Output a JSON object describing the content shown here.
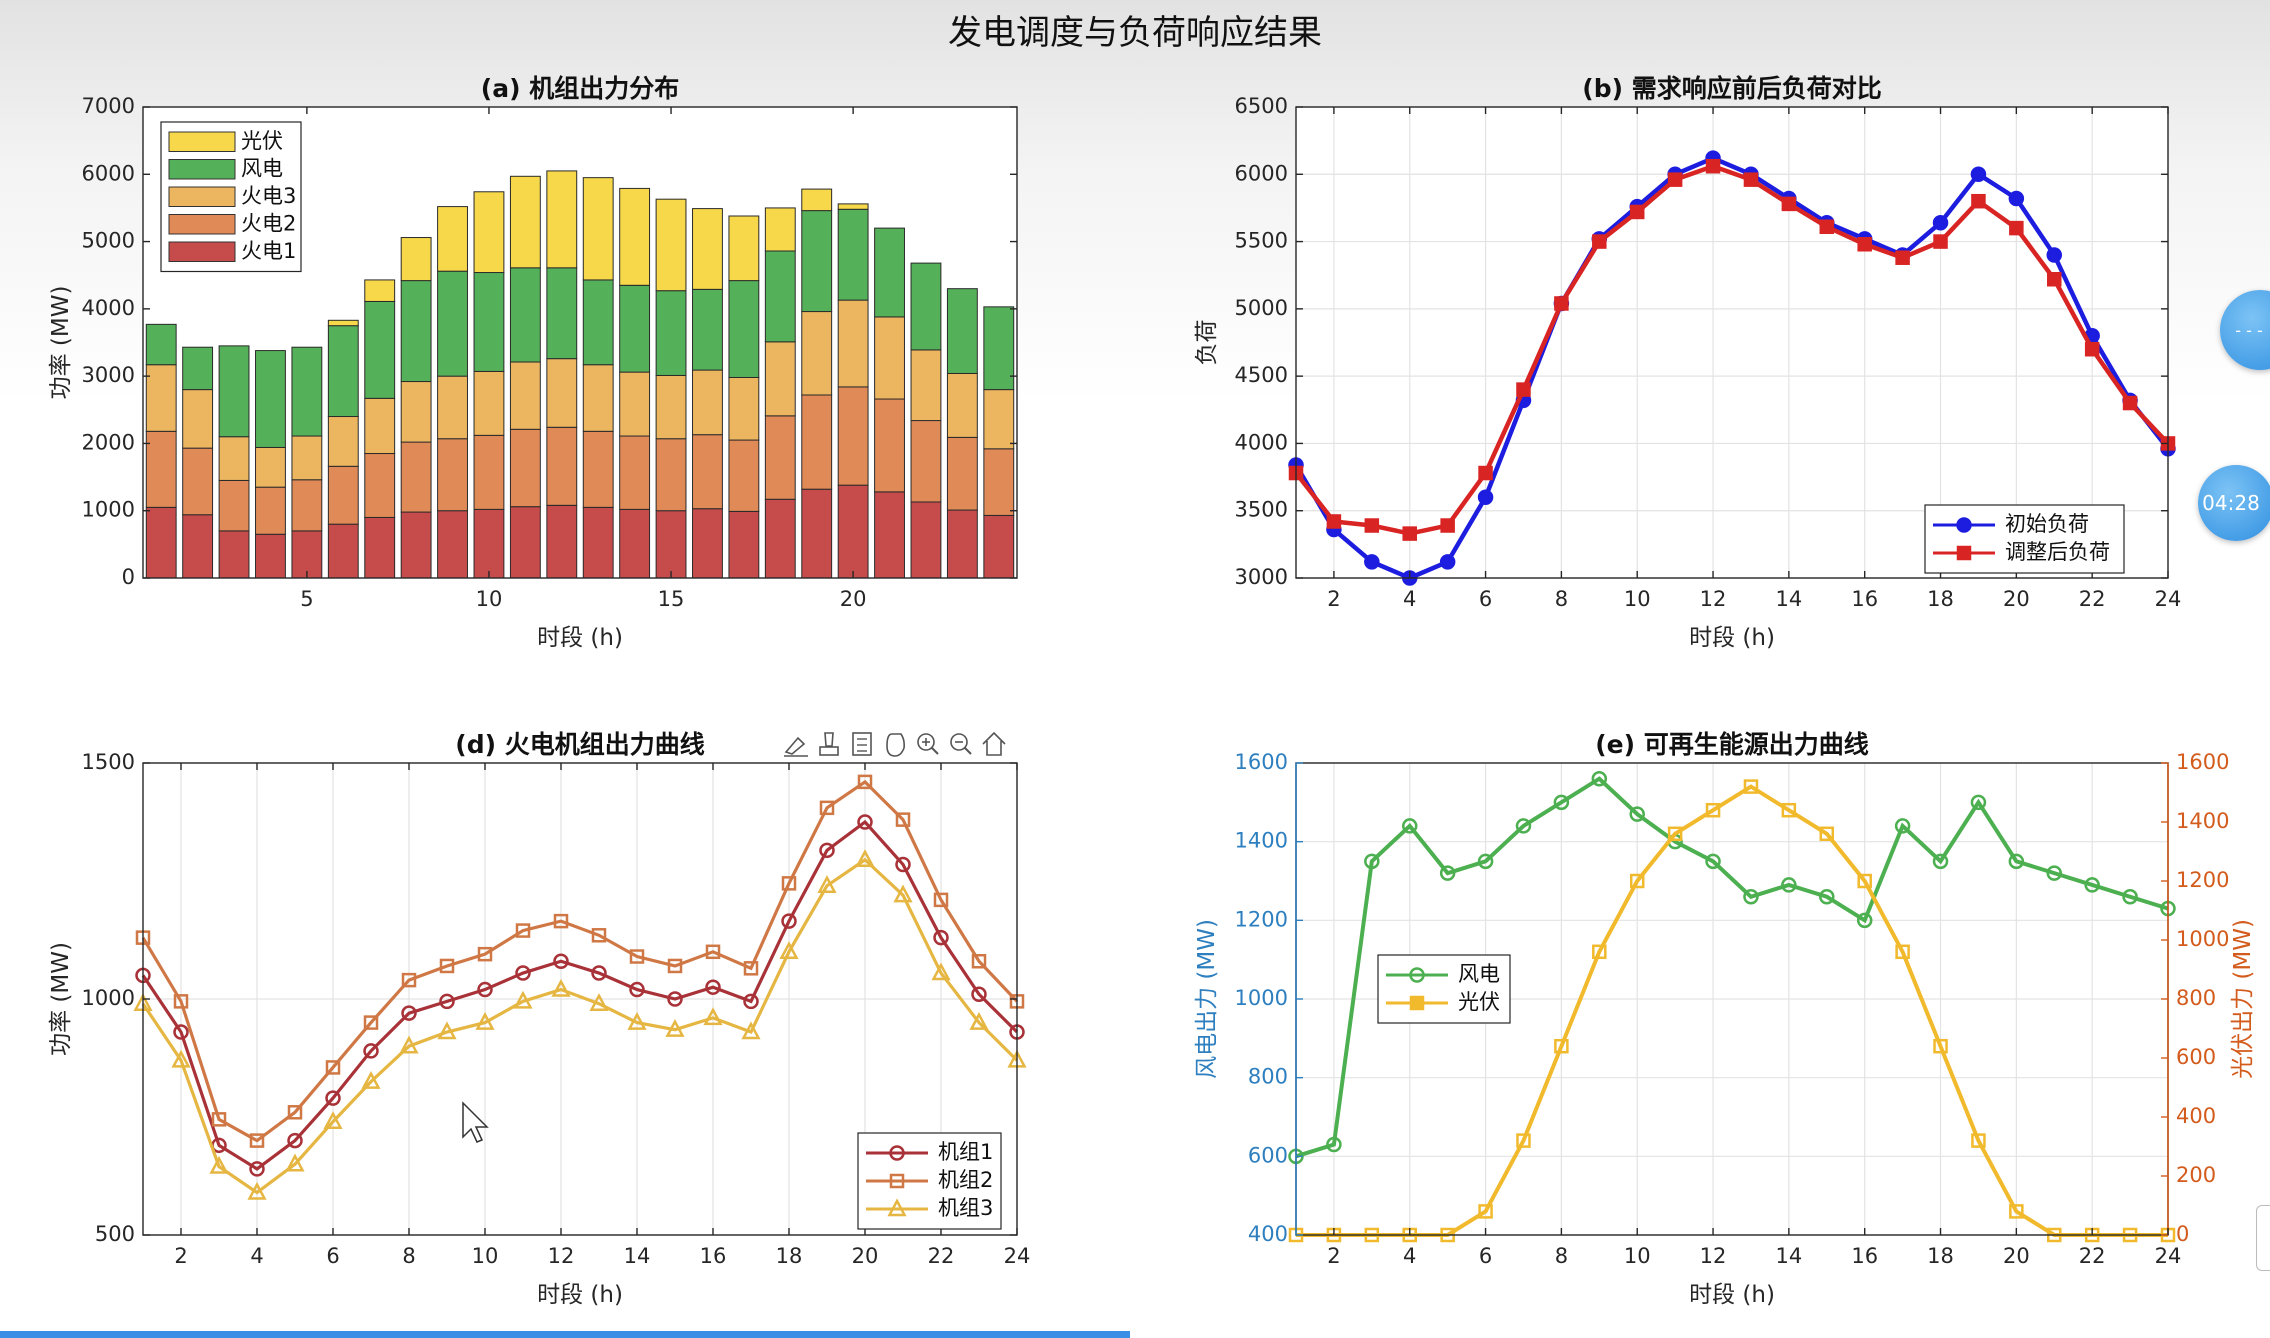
{
  "window": {
    "figure_title": "发电调度与负荷响应结果",
    "timer_badge": "04:28",
    "side_button": "- - -"
  },
  "axes_toolbar": {
    "icons": [
      "brush-icon",
      "data-tips-icon",
      "insert-legend-icon",
      "pan-hand-icon",
      "zoom-in-icon",
      "zoom-out-icon",
      "home-icon"
    ]
  },
  "colors": {
    "pv": "#f6d84a",
    "wind": "#55b05a",
    "thermal3": "#ecb661",
    "thermal2": "#e08a57",
    "thermal1": "#c64b4b",
    "initial_load": "#1d1de0",
    "adjusted_load": "#d92424",
    "unit1": "#a83238",
    "unit2": "#d07845",
    "unit3": "#e6b642",
    "wind_line": "#4caf50",
    "pv_line": "#f1b92c",
    "left_axis_blue": "#2d7fbf",
    "right_axis_orange": "#d35b1c"
  },
  "chart_data": [
    {
      "id": "a",
      "type": "bar",
      "title": "(a) 机组出力分布",
      "xlabel": "时段 (h)",
      "ylabel": "功率 (MW)",
      "ylim": [
        0,
        7000
      ],
      "yticks": [
        0,
        1000,
        2000,
        3000,
        4000,
        5000,
        6000,
        7000
      ],
      "xticks": [
        5,
        10,
        15,
        20
      ],
      "stacked": true,
      "legend_position": "top-left",
      "categories": [
        1,
        2,
        3,
        4,
        5,
        6,
        7,
        8,
        9,
        10,
        11,
        12,
        13,
        14,
        15,
        16,
        17,
        18,
        19,
        20,
        21,
        22,
        23,
        24
      ],
      "series": [
        {
          "name": "火电1",
          "values": [
            1050,
            940,
            700,
            650,
            700,
            800,
            900,
            980,
            1000,
            1020,
            1060,
            1080,
            1050,
            1020,
            1000,
            1030,
            990,
            1170,
            1320,
            1380,
            1280,
            1130,
            1010,
            930
          ]
        },
        {
          "name": "火电2",
          "values": [
            1130,
            990,
            750,
            700,
            760,
            860,
            950,
            1040,
            1070,
            1100,
            1150,
            1160,
            1130,
            1090,
            1070,
            1100,
            1060,
            1240,
            1400,
            1460,
            1380,
            1210,
            1080,
            990
          ]
        },
        {
          "name": "火电3",
          "values": [
            990,
            870,
            650,
            590,
            650,
            740,
            820,
            900,
            930,
            950,
            1000,
            1020,
            990,
            950,
            940,
            960,
            930,
            1100,
            1240,
            1290,
            1220,
            1050,
            950,
            880
          ]
        },
        {
          "name": "风电",
          "values": [
            600,
            630,
            1350,
            1440,
            1320,
            1350,
            1440,
            1500,
            1560,
            1470,
            1400,
            1350,
            1260,
            1290,
            1260,
            1200,
            1440,
            1350,
            1500,
            1350,
            1320,
            1290,
            1260,
            1230
          ]
        },
        {
          "name": "光伏",
          "values": [
            0,
            0,
            0,
            0,
            0,
            80,
            320,
            640,
            960,
            1200,
            1360,
            1440,
            1520,
            1440,
            1360,
            1200,
            960,
            640,
            320,
            80,
            0,
            0,
            0,
            0
          ]
        }
      ]
    },
    {
      "id": "b",
      "type": "line",
      "title": "(b) 需求响应前后负荷对比",
      "xlabel": "时段 (h)",
      "ylabel": "负荷",
      "ylim": [
        3000,
        6500
      ],
      "xlim": [
        1,
        24
      ],
      "yticks": [
        3000,
        3500,
        4000,
        4500,
        5000,
        5500,
        6000,
        6500
      ],
      "xticks": [
        2,
        4,
        6,
        8,
        10,
        12,
        14,
        16,
        18,
        20,
        22,
        24
      ],
      "legend_position": "bottom-right",
      "x": [
        1,
        2,
        3,
        4,
        5,
        6,
        7,
        8,
        9,
        10,
        11,
        12,
        13,
        14,
        15,
        16,
        17,
        18,
        19,
        20,
        21,
        22,
        23,
        24
      ],
      "series": [
        {
          "name": "初始负荷",
          "marker": "circle",
          "values": [
            3840,
            3360,
            3120,
            3000,
            3120,
            3600,
            4320,
            5040,
            5520,
            5760,
            6000,
            6120,
            6000,
            5820,
            5640,
            5520,
            5400,
            5640,
            6000,
            5820,
            5400,
            4800,
            4320,
            3960
          ]
        },
        {
          "name": "调整后负荷",
          "marker": "square",
          "values": [
            3780,
            3420,
            3390,
            3330,
            3390,
            3780,
            4400,
            5040,
            5500,
            5720,
            5960,
            6060,
            5960,
            5780,
            5610,
            5480,
            5380,
            5500,
            5800,
            5600,
            5220,
            4700,
            4300,
            4000
          ]
        }
      ]
    },
    {
      "id": "d",
      "type": "line",
      "title": "(d) 火电机组出力曲线",
      "xlabel": "时段 (h)",
      "ylabel": "功率 (MW)",
      "ylim": [
        500,
        1500
      ],
      "xlim": [
        1,
        24
      ],
      "yticks": [
        500,
        1000,
        1500
      ],
      "xticks": [
        2,
        4,
        6,
        8,
        10,
        12,
        14,
        16,
        18,
        20,
        22,
        24
      ],
      "legend_position": "bottom-right",
      "x": [
        1,
        2,
        3,
        4,
        5,
        6,
        7,
        8,
        9,
        10,
        11,
        12,
        13,
        14,
        15,
        16,
        17,
        18,
        19,
        20,
        21,
        22,
        23,
        24
      ],
      "series": [
        {
          "name": "机组1",
          "marker": "circle",
          "values": [
            1050,
            930,
            690,
            640,
            700,
            790,
            890,
            970,
            995,
            1020,
            1055,
            1080,
            1055,
            1020,
            1000,
            1025,
            995,
            1165,
            1315,
            1375,
            1285,
            1130,
            1010,
            930
          ]
        },
        {
          "name": "机组2",
          "marker": "square",
          "values": [
            1130,
            995,
            745,
            700,
            760,
            855,
            950,
            1040,
            1070,
            1095,
            1145,
            1165,
            1135,
            1090,
            1070,
            1100,
            1065,
            1245,
            1405,
            1460,
            1380,
            1210,
            1080,
            995
          ]
        },
        {
          "name": "机组3",
          "marker": "triangle",
          "values": [
            990,
            870,
            645,
            590,
            650,
            740,
            825,
            900,
            930,
            950,
            995,
            1020,
            990,
            950,
            935,
            960,
            930,
            1100,
            1240,
            1295,
            1220,
            1055,
            950,
            870
          ]
        }
      ]
    },
    {
      "id": "e",
      "type": "line",
      "title": "(e) 可再生能源出力曲线",
      "xlabel": "时段 (h)",
      "ylabel": "风电出力 (MW)",
      "ylabel_right": "光伏出力 (MW)",
      "ylim": [
        400,
        1600
      ],
      "ylim_right": [
        0,
        1600
      ],
      "xlim": [
        1,
        24
      ],
      "yticks": [
        400,
        600,
        800,
        1000,
        1200,
        1400,
        1600
      ],
      "yticks_right": [
        0,
        200,
        400,
        600,
        800,
        1000,
        1200,
        1400,
        1600
      ],
      "xticks": [
        2,
        4,
        6,
        8,
        10,
        12,
        14,
        16,
        18,
        20,
        22,
        24
      ],
      "legend_position": "middle-left",
      "x": [
        1,
        2,
        3,
        4,
        5,
        6,
        7,
        8,
        9,
        10,
        11,
        12,
        13,
        14,
        15,
        16,
        17,
        18,
        19,
        20,
        21,
        22,
        23,
        24
      ],
      "series": [
        {
          "name": "风电",
          "marker": "circle",
          "axis": "left",
          "values": [
            600,
            630,
            1350,
            1440,
            1320,
            1350,
            1440,
            1500,
            1560,
            1470,
            1400,
            1350,
            1260,
            1290,
            1260,
            1200,
            1440,
            1350,
            1500,
            1350,
            1320,
            1290,
            1260,
            1230
          ]
        },
        {
          "name": "光伏",
          "marker": "square",
          "axis": "right",
          "values": [
            0,
            0,
            0,
            0,
            0,
            80,
            320,
            640,
            960,
            1200,
            1360,
            1440,
            1520,
            1440,
            1360,
            1200,
            960,
            640,
            320,
            80,
            0,
            0,
            0,
            0
          ]
        }
      ]
    }
  ]
}
